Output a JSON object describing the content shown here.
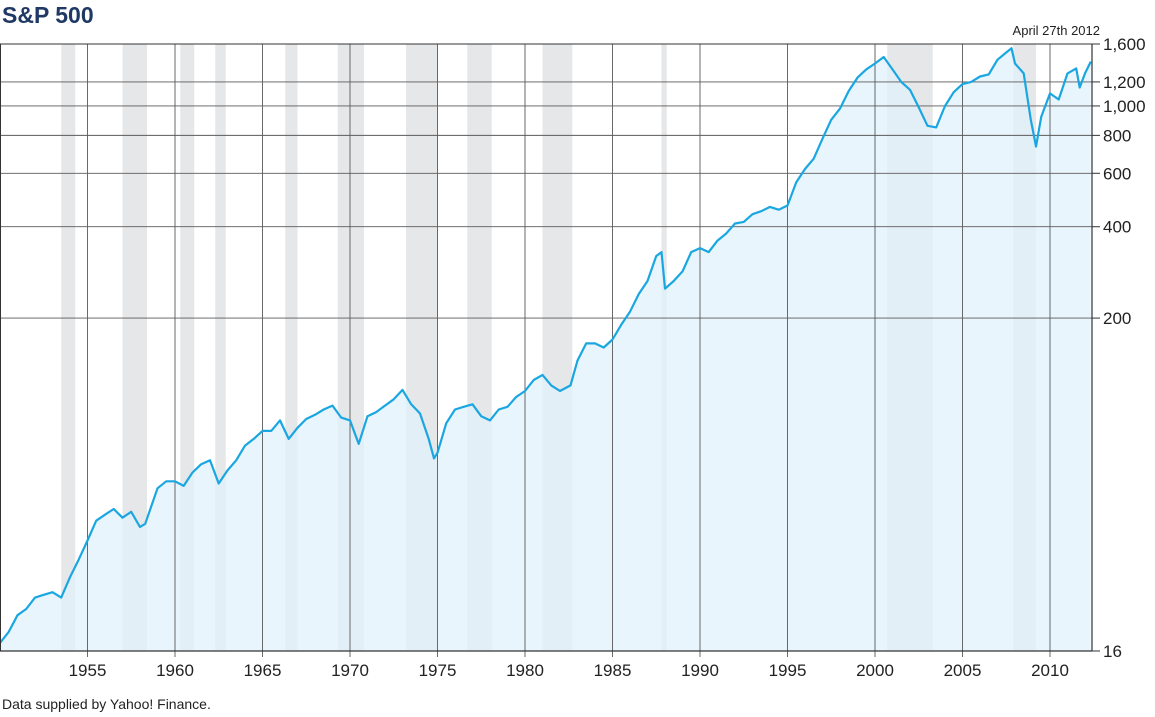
{
  "chart_data": {
    "type": "line",
    "title": "S&P 500",
    "annotation": "April 27th 2012",
    "source": "Data supplied by Yahoo! Finance.",
    "y_scale": "log",
    "ylim": [
      16,
      1600
    ],
    "xlim": [
      1950,
      2012.4
    ],
    "grid": true,
    "fill": "area under line",
    "line_color": "#1aa7e1",
    "fill_color": "#e2f2fb",
    "recession_color": "#e6e7e8",
    "x_ticks": [
      1955,
      1960,
      1965,
      1970,
      1975,
      1980,
      1985,
      1990,
      1995,
      2000,
      2005,
      2010
    ],
    "y_ticks": [
      {
        "value": 1600,
        "label": "1,600"
      },
      {
        "value": 1200,
        "label": "1,200"
      },
      {
        "value": 1000,
        "label": "1,000"
      },
      {
        "value": 800,
        "label": "800"
      },
      {
        "value": 600,
        "label": "600"
      },
      {
        "value": 400,
        "label": "400"
      },
      {
        "value": 200,
        "label": "200"
      },
      {
        "value": 16,
        "label": "16"
      }
    ],
    "recessions": [
      [
        1953.5,
        1954.3
      ],
      [
        1957.0,
        1958.4
      ],
      [
        1960.3,
        1961.1
      ],
      [
        1962.3,
        1962.9
      ],
      [
        1966.3,
        1967.0
      ],
      [
        1969.3,
        1970.8
      ],
      [
        1973.2,
        1975.0
      ],
      [
        1976.7,
        1978.1
      ],
      [
        1981.0,
        1982.7
      ],
      [
        1987.8,
        1988.1
      ],
      [
        2000.7,
        2003.3
      ],
      [
        2007.9,
        2009.2
      ]
    ],
    "series": [
      {
        "name": "",
        "x": [
          1950.0,
          1950.5,
          1951.0,
          1951.5,
          1952.0,
          1952.5,
          1953.0,
          1953.5,
          1954.0,
          1954.5,
          1955.0,
          1955.5,
          1956.0,
          1956.5,
          1957.0,
          1957.5,
          1958.0,
          1958.3,
          1959.0,
          1959.5,
          1960.0,
          1960.5,
          1961.0,
          1961.5,
          1962.0,
          1962.5,
          1963.0,
          1963.5,
          1964.0,
          1964.5,
          1965.0,
          1965.5,
          1966.0,
          1966.5,
          1967.0,
          1967.5,
          1968.0,
          1968.5,
          1969.0,
          1969.5,
          1970.0,
          1970.5,
          1971.0,
          1971.5,
          1972.0,
          1972.5,
          1973.0,
          1973.5,
          1974.0,
          1974.5,
          1974.8,
          1975.0,
          1975.5,
          1976.0,
          1976.5,
          1977.0,
          1977.5,
          1978.0,
          1978.5,
          1979.0,
          1979.5,
          1980.0,
          1980.5,
          1981.0,
          1981.5,
          1982.0,
          1982.6,
          1983.0,
          1983.5,
          1984.0,
          1984.5,
          1985.0,
          1985.5,
          1986.0,
          1986.5,
          1987.0,
          1987.5,
          1987.8,
          1988.0,
          1988.5,
          1989.0,
          1989.5,
          1990.0,
          1990.5,
          1991.0,
          1991.5,
          1992.0,
          1992.5,
          1993.0,
          1993.5,
          1994.0,
          1994.5,
          1995.0,
          1995.5,
          1996.0,
          1996.5,
          1997.0,
          1997.5,
          1998.0,
          1998.5,
          1999.0,
          1999.5,
          2000.0,
          2000.5,
          2001.0,
          2001.5,
          2002.0,
          2002.5,
          2003.0,
          2003.5,
          2004.0,
          2004.5,
          2005.0,
          2005.5,
          2006.0,
          2006.5,
          2007.0,
          2007.5,
          2007.8,
          2008.0,
          2008.5,
          2008.9,
          2009.2,
          2009.5,
          2010.0,
          2010.5,
          2011.0,
          2011.5,
          2011.7,
          2012.0,
          2012.33
        ],
        "values": [
          17,
          18.5,
          21,
          22,
          24,
          24.5,
          25,
          24,
          28,
          32,
          37,
          43,
          45,
          47,
          44,
          46,
          41,
          42,
          55,
          58,
          58,
          56,
          62,
          66,
          68,
          57,
          63,
          68,
          76,
          80,
          85,
          85,
          92,
          80,
          87,
          93,
          96,
          100,
          103,
          94,
          92,
          77,
          95,
          98,
          103,
          108,
          116,
          104,
          97,
          80,
          69,
          72,
          90,
          100,
          102,
          104,
          95,
          92,
          100,
          102,
          110,
          115,
          125,
          130,
          120,
          115,
          120,
          145,
          165,
          165,
          160,
          170,
          190,
          210,
          240,
          265,
          320,
          330,
          250,
          265,
          285,
          330,
          340,
          330,
          360,
          380,
          410,
          415,
          440,
          450,
          465,
          455,
          470,
          560,
          620,
          670,
          780,
          900,
          980,
          1120,
          1240,
          1320,
          1380,
          1450,
          1320,
          1200,
          1130,
          990,
          860,
          850,
          1000,
          1110,
          1180,
          1200,
          1250,
          1270,
          1420,
          1500,
          1550,
          1380,
          1280,
          900,
          735,
          920,
          1100,
          1050,
          1280,
          1330,
          1150,
          1280,
          1400
        ]
      }
    ]
  }
}
